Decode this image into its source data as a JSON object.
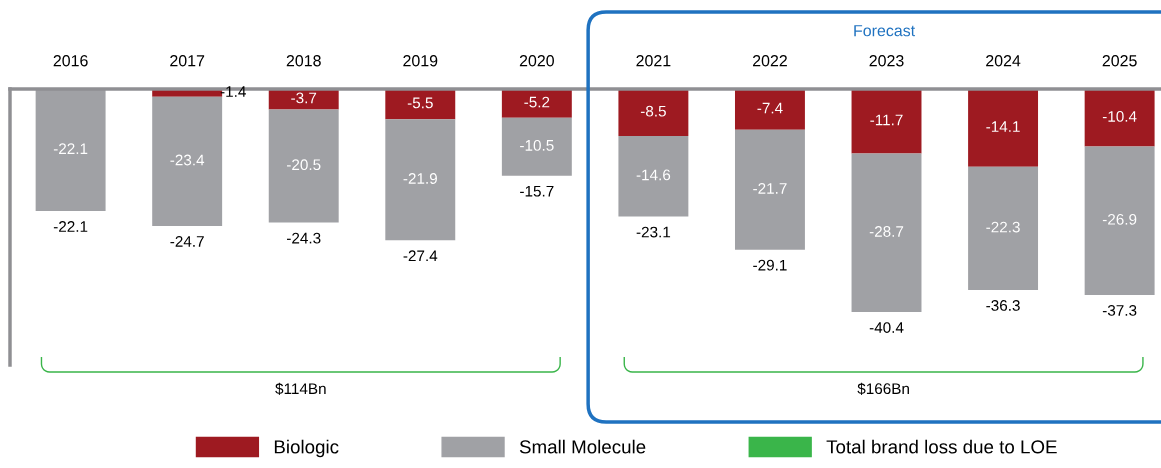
{
  "chart_data": {
    "type": "bar",
    "stacked": true,
    "categories": [
      "2016",
      "2017",
      "2018",
      "2019",
      "2020",
      "2021",
      "2022",
      "2023",
      "2024",
      "2025"
    ],
    "series": [
      {
        "name": "Biologic",
        "color": "#9e1a21",
        "values": [
          null,
          -1.4,
          -3.7,
          -5.5,
          -5.2,
          -8.5,
          -7.4,
          -11.7,
          -14.1,
          -10.4
        ]
      },
      {
        "name": "Small Molecule",
        "color": "#a0a1a5",
        "values": [
          -22.1,
          -23.4,
          -20.5,
          -21.9,
          -10.5,
          -14.6,
          -21.7,
          -28.7,
          -22.3,
          -26.9
        ]
      }
    ],
    "totals": [
      "-22.1",
      "-24.7",
      "-24.3",
      "-27.4",
      "-15.7",
      "-23.1",
      "-29.1",
      "-40.4",
      "-36.3",
      "-37.3"
    ],
    "data_labels": true,
    "ylim": [
      -50,
      0
    ],
    "tick_labels": "x",
    "legend": "bottom",
    "annotations": [
      "Forecast",
      "$114Bn",
      "$166Bn",
      "Total brand loss due to LOE"
    ]
  }
}
